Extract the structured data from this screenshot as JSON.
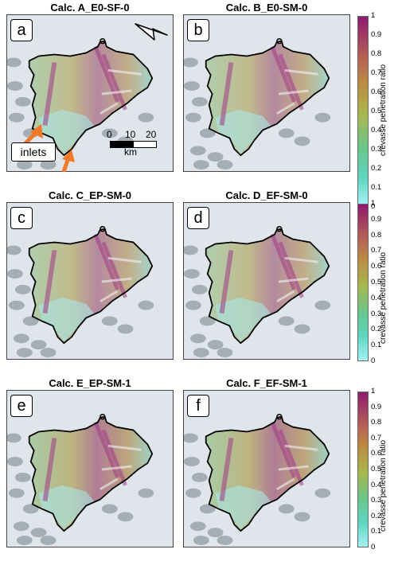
{
  "panels": [
    {
      "letter": "a",
      "title": "Calc. A_E0-SF-0"
    },
    {
      "letter": "b",
      "title": "Calc. B_E0-SM-0"
    },
    {
      "letter": "c",
      "title": "Calc. C_EP-SM-0"
    },
    {
      "letter": "d",
      "title": "Calc. D_EF-SM-0"
    },
    {
      "letter": "e",
      "title": "Calc. E_EP-SM-1"
    },
    {
      "letter": "f",
      "title": "Calc. F_EF-SM-1"
    }
  ],
  "annotations": {
    "inlets_label": "inlets"
  },
  "scale_bar": {
    "zero": "0",
    "ten": "10",
    "twenty": "20",
    "unit": "km"
  },
  "colorbar": {
    "label": "crevasse penetration ratio",
    "ticks": [
      "1",
      "0.9",
      "0.8",
      "0.7",
      "0.6",
      "0.5",
      "0.4",
      "0.3",
      "0.2",
      "0.1",
      "0"
    ],
    "colors": {
      "low": "#a6f3f5",
      "mid": "#a8b84f",
      "high": "#8d1a6f"
    }
  },
  "icons": {
    "north_arrow": "north-arrow-icon"
  }
}
